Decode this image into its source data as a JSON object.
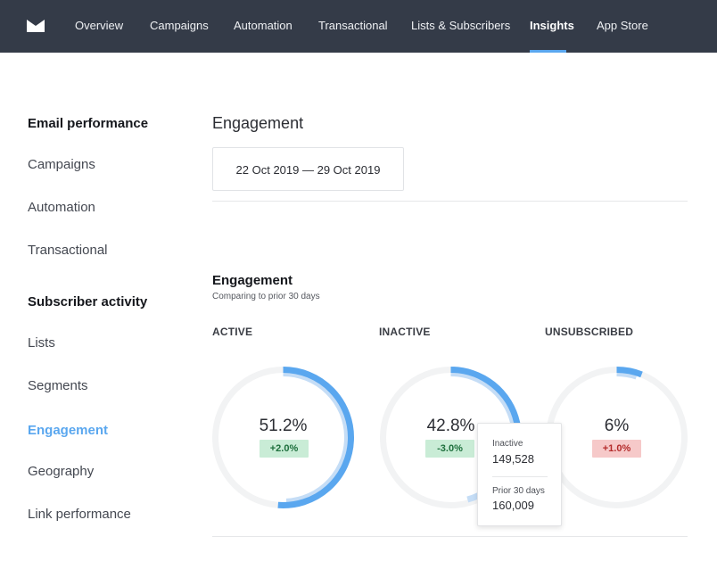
{
  "nav": {
    "items": [
      {
        "label": "Overview"
      },
      {
        "label": "Campaigns"
      },
      {
        "label": "Automation"
      },
      {
        "label": "Transactional"
      },
      {
        "label": "Lists & Subscribers"
      },
      {
        "label": "Insights",
        "active": true
      },
      {
        "label": "App Store"
      }
    ]
  },
  "sidebar": {
    "sections": [
      {
        "heading": "Email performance",
        "links": [
          "Campaigns",
          "Automation",
          "Transactional"
        ]
      },
      {
        "heading": "Subscriber activity",
        "links": [
          "Lists",
          "Segments",
          "Engagement",
          "Geography",
          "Link performance"
        ]
      }
    ],
    "active_link": "Engagement"
  },
  "main": {
    "title": "Engagement",
    "date_range": "22 Oct 2019 — 29 Oct 2019",
    "section": {
      "title": "Engagement",
      "subtitle": "Comparing to prior 30 days"
    },
    "metrics": [
      {
        "label": "ACTIVE",
        "value": "51.2%",
        "percent": 51.2,
        "prior_percent": 49.2,
        "change": "+2.0%",
        "trend": "up"
      },
      {
        "label": "INACTIVE",
        "value": "42.8%",
        "percent": 42.8,
        "prior_percent": 45.8,
        "change": "-3.0%",
        "trend": "up"
      },
      {
        "label": "UNSUBSCRIBED",
        "value": "6%",
        "percent": 6,
        "prior_percent": 5,
        "change": "+1.0%",
        "trend": "down"
      }
    ],
    "tooltip": {
      "label": "Inactive",
      "value": "149,528",
      "prior_label": "Prior 30 days",
      "prior_value": "160,009"
    }
  },
  "colors": {
    "nav_bg": "#343b48",
    "accent": "#5aa7ef",
    "accent_light": "#c5ddf6",
    "track": "#f2f3f4",
    "positive_bg": "#c9ecd6",
    "negative_bg": "#f6c9c9"
  },
  "icons": {
    "logo": "envelope-logo-icon"
  }
}
